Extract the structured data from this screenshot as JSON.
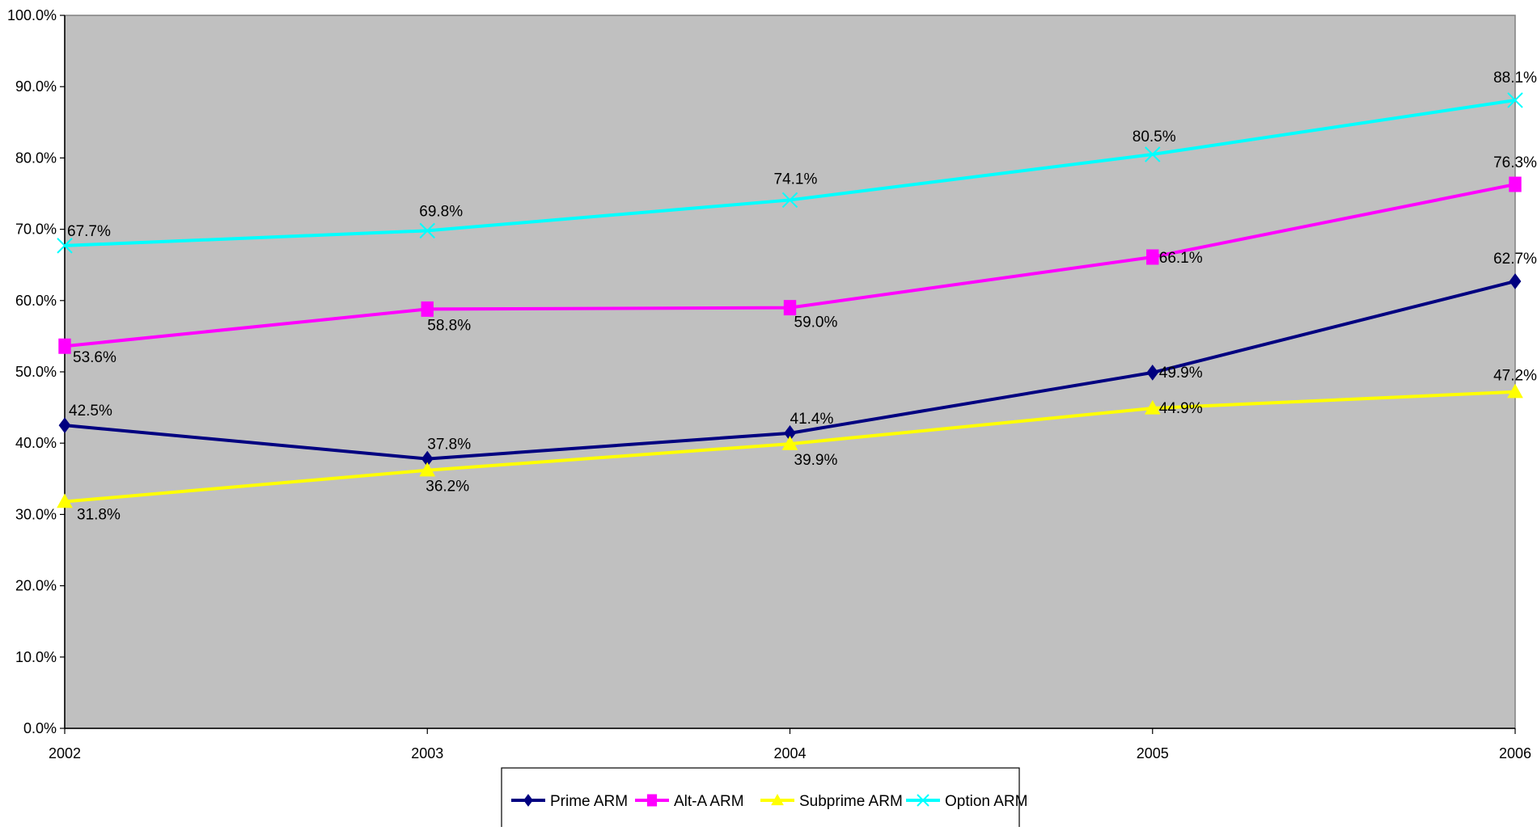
{
  "chart_data": {
    "type": "line",
    "title": "",
    "xlabel": "",
    "ylabel": "",
    "categories": [
      "2002",
      "2003",
      "2004",
      "2005",
      "2006"
    ],
    "ylim": [
      0,
      100
    ],
    "yticks": [
      "0.0%",
      "10.0%",
      "20.0%",
      "30.0%",
      "40.0%",
      "50.0%",
      "60.0%",
      "70.0%",
      "80.0%",
      "90.0%",
      "100.0%"
    ],
    "grid": false,
    "plot_background": "#c0c0c0",
    "legend_position": "bottom",
    "series": [
      {
        "name": "Prime ARM",
        "values": [
          42.5,
          37.8,
          41.4,
          49.9,
          62.7
        ],
        "labels": [
          "42.5%",
          "37.8%",
          "41.4%",
          "49.9%",
          "62.7%"
        ],
        "color": "#000080",
        "marker": "diamond"
      },
      {
        "name": "Alt-A ARM",
        "values": [
          53.6,
          58.8,
          59.0,
          66.1,
          76.3
        ],
        "labels": [
          "53.6%",
          "58.8%",
          "59.0%",
          "66.1%",
          "76.3%"
        ],
        "color": "#ff00ff",
        "marker": "square"
      },
      {
        "name": "Subprime ARM",
        "values": [
          31.8,
          36.2,
          39.9,
          44.9,
          47.2
        ],
        "labels": [
          "31.8%",
          "36.2%",
          "39.9%",
          "44.9%",
          "47.2%"
        ],
        "color": "#ffff00",
        "marker": "triangle"
      },
      {
        "name": "Option ARM",
        "values": [
          67.7,
          69.8,
          74.1,
          80.5,
          88.1
        ],
        "labels": [
          "67.7%",
          "69.8%",
          "74.1%",
          "80.5%",
          "88.1%"
        ],
        "color": "#00ffff",
        "marker": "x"
      }
    ]
  }
}
